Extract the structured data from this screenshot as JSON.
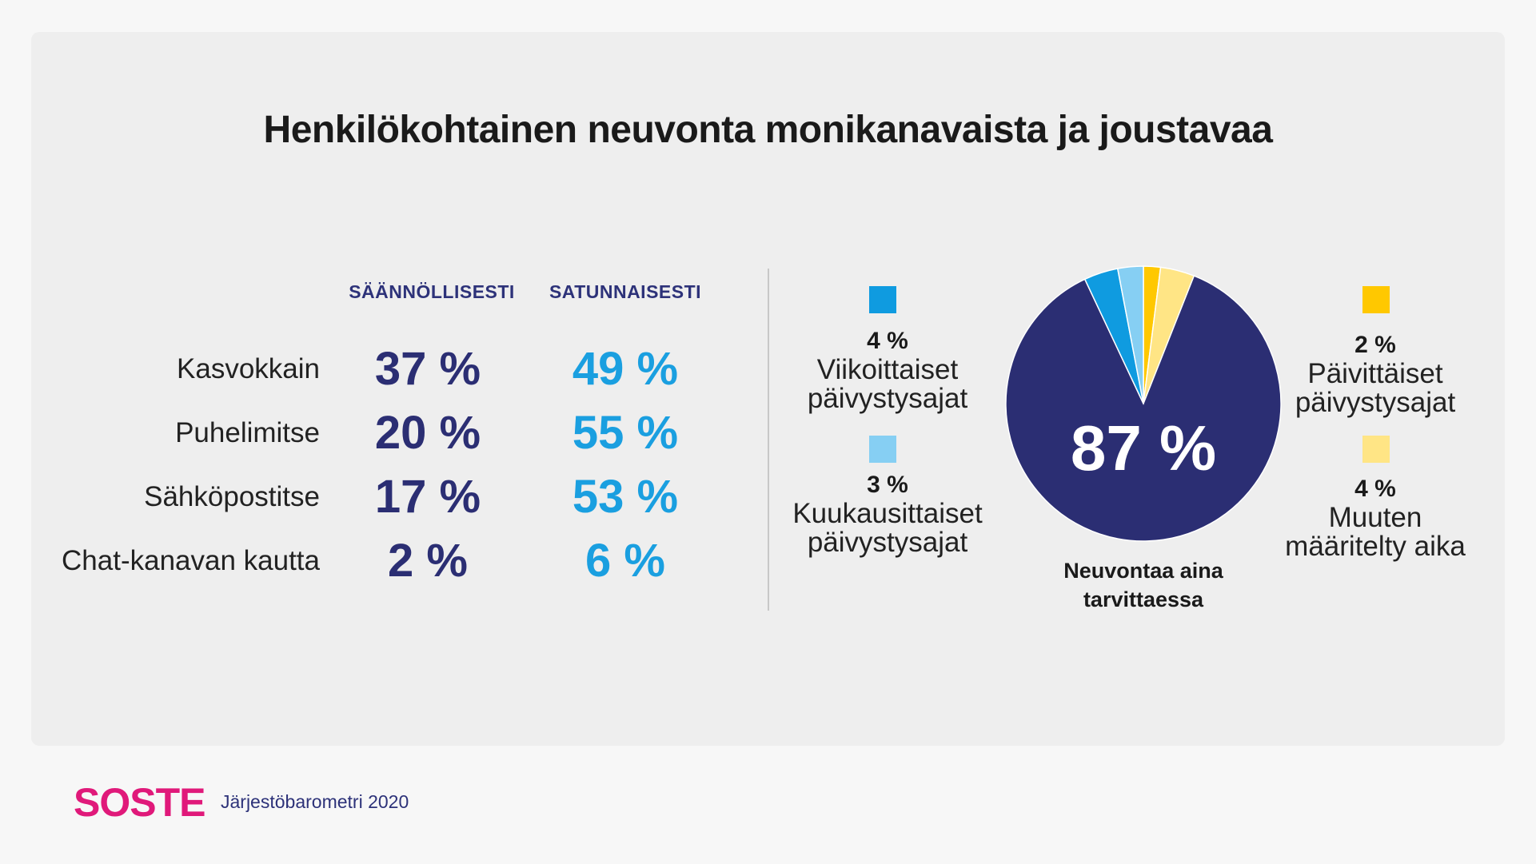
{
  "title": "Henkilökohtainen neuvonta monikanavaista ja joustavaa",
  "table": {
    "columns": [
      "SÄÄNNÖLLISESTI",
      "SATUNNAISESTI"
    ],
    "rows": [
      {
        "label": "Kasvokkain",
        "regular": "37 %",
        "occasional": "49 %"
      },
      {
        "label": "Puhelimitse",
        "regular": "20 %",
        "occasional": "55 %"
      },
      {
        "label": "Sähköpostitse",
        "regular": "17 %",
        "occasional": "53 %"
      },
      {
        "label": "Chat-kanavan kautta",
        "regular": "2 %",
        "occasional": "6 %"
      }
    ]
  },
  "legend": [
    {
      "pct": "4 %",
      "line1": "Viikoittaiset",
      "line2": "päivystysajat",
      "color": "#0f9be0"
    },
    {
      "pct": "3 %",
      "line1": "Kuukausittaiset",
      "line2": "päivystysajat",
      "color": "#86cff3"
    },
    {
      "pct": "2 %",
      "line1": "Päivittäiset",
      "line2": "päivystysajat",
      "color": "#ffc800"
    },
    {
      "pct": "4 %",
      "line1": "Muuten",
      "line2": "määritelty aika",
      "color": "#ffe585"
    }
  ],
  "pie": {
    "big_label": "87 %",
    "caption_line1": "Neuvontaa aina",
    "caption_line2": "tarvittaessa"
  },
  "footer": {
    "logo": "SOSTE",
    "source": "Järjestöbarometri 2020"
  },
  "colors": {
    "regular": "#2b2e73",
    "occasional": "#1a9fe0",
    "pie_main": "#2b2e73",
    "accent": "#e0197a"
  },
  "chart_data": [
    {
      "type": "table",
      "columns": [
        "",
        "SÄÄNNÖLLISESTI",
        "SATUNNAISESTI"
      ],
      "categories": [
        "Kasvokkain",
        "Puhelimitse",
        "Sähköpostitse",
        "Chat-kanavan kautta"
      ],
      "series": [
        {
          "name": "SÄÄNNÖLLISESTI",
          "values": [
            37,
            20,
            17,
            2
          ]
        },
        {
          "name": "SATUNNAISESTI",
          "values": [
            49,
            55,
            53,
            6
          ]
        }
      ]
    },
    {
      "type": "pie",
      "categories": [
        "Neuvontaa aina tarvittaessa",
        "Päivittäiset päivystysajat",
        "Muuten määritelty aika",
        "Kuukausittaiset päivystysajat",
        "Viikoittaiset päivystysajat"
      ],
      "values": [
        87,
        2,
        4,
        3,
        4
      ],
      "colors": [
        "#2b2e73",
        "#ffc800",
        "#ffe585",
        "#86cff3",
        "#0f9be0"
      ],
      "start": "top",
      "direction": "counterclockwise-after-main"
    }
  ]
}
